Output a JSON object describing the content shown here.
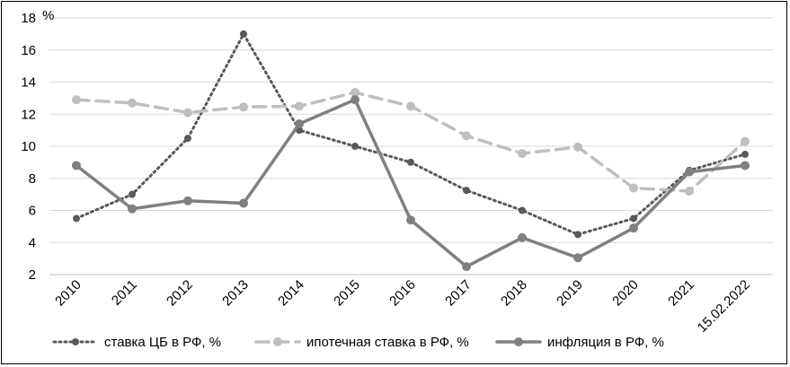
{
  "chart_data": {
    "type": "line",
    "y_unit": "%",
    "categories": [
      "2010",
      "2011",
      "2012",
      "2013",
      "2014",
      "2015",
      "2016",
      "2017",
      "2018",
      "2019",
      "2020",
      "2021",
      "15.02.2022"
    ],
    "ylim": [
      2,
      18
    ],
    "yticks": [
      2,
      4,
      6,
      8,
      10,
      12,
      14,
      16,
      18
    ],
    "grid": true,
    "legend_position": "bottom",
    "series": [
      {
        "name": "ставка ЦБ в РФ, %",
        "color": "#595959",
        "style": "dotted",
        "values": [
          5.5,
          7.0,
          10.5,
          17.0,
          11.0,
          10.0,
          9.0,
          7.25,
          6.0,
          4.5,
          5.5,
          8.5,
          9.5
        ]
      },
      {
        "name": "ипотечная ставка в РФ, %",
        "color": "#bfbfbf",
        "style": "dashed",
        "values": [
          12.9,
          12.7,
          12.1,
          12.45,
          12.5,
          13.35,
          12.5,
          10.65,
          9.55,
          9.95,
          7.4,
          7.2,
          10.3
        ]
      },
      {
        "name": "инфляция в РФ, %",
        "color": "#808080",
        "style": "solid",
        "values": [
          8.8,
          6.1,
          6.6,
          6.45,
          11.4,
          12.9,
          5.4,
          2.5,
          4.3,
          3.05,
          4.9,
          8.4,
          8.8
        ]
      }
    ]
  }
}
